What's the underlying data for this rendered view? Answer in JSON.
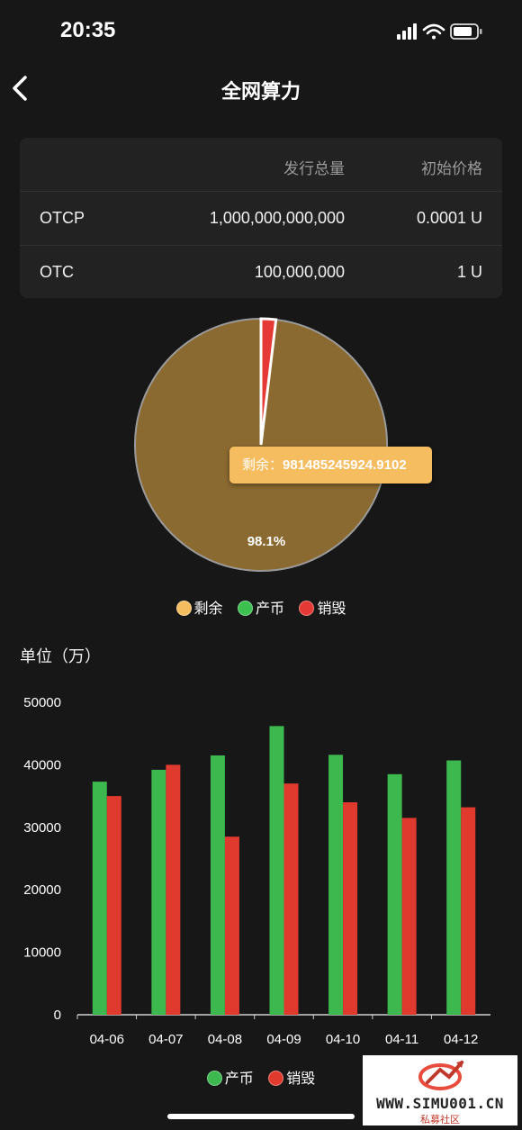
{
  "status_bar": {
    "time": "20:35"
  },
  "nav": {
    "title": "全网算力"
  },
  "table": {
    "headers": [
      "",
      "发行总量",
      "初始价格"
    ],
    "rows": [
      {
        "name": "OTCP",
        "total": "1,000,000,000,000",
        "price": "0.0001 U"
      },
      {
        "name": "OTC",
        "total": "100,000,000",
        "price": "1 U"
      }
    ]
  },
  "pie": {
    "slices": [
      {
        "name": "剩余",
        "value": 98.1,
        "color": "#8b6a31"
      },
      {
        "name": "产币",
        "value": 0.0,
        "color": "#3cc050"
      },
      {
        "name": "销毁",
        "value": 1.9,
        "color": "#e53935"
      }
    ],
    "label": "98.1%",
    "tooltip": {
      "name": "剩余：",
      "value": "981485245924.9102"
    },
    "legend": [
      {
        "name": "剩余",
        "color": "#f6bd60"
      },
      {
        "name": "产币",
        "color": "#3cc050"
      },
      {
        "name": "销毁",
        "color": "#e53935"
      }
    ]
  },
  "chart_data": {
    "type": "bar",
    "ylabel": "单位（万）",
    "categories": [
      "04-06",
      "04-07",
      "04-08",
      "04-09",
      "04-10",
      "04-11",
      "04-12"
    ],
    "series": [
      {
        "name": "产币",
        "color": "#3cb84f",
        "values": [
          37300,
          39200,
          41500,
          46200,
          41600,
          38500,
          40700
        ]
      },
      {
        "name": "销毁",
        "color": "#e03a2f",
        "values": [
          35000,
          40000,
          28500,
          37000,
          34000,
          31500,
          33200
        ]
      }
    ],
    "ylim": [
      0,
      50000
    ],
    "yticks": [
      0,
      10000,
      20000,
      30000,
      40000,
      50000
    ],
    "legend_position": "bottom"
  },
  "watermark": {
    "text": "WWW.SIMU001.CN",
    "sub": "私募社区"
  }
}
